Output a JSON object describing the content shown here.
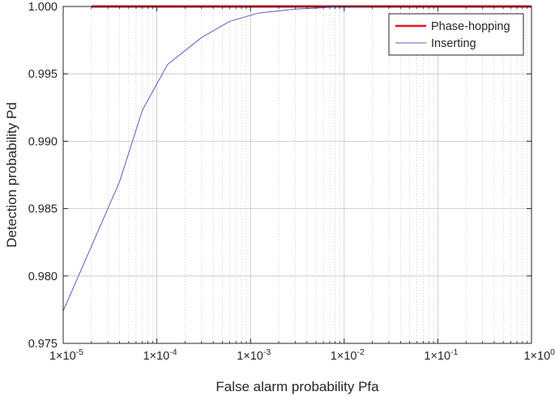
{
  "chart_data": {
    "type": "line",
    "xlabel": "False alarm probability Pfa",
    "ylabel": "Detection probability Pd",
    "xscale": "log",
    "xlim": [
      1e-05,
      1
    ],
    "ylim": [
      0.975,
      1.0
    ],
    "x_ticks": [
      1e-05,
      0.0001,
      0.001,
      0.01,
      0.1,
      1
    ],
    "x_tick_labels": [
      {
        "base": "1×10",
        "exp": "-5"
      },
      {
        "base": "1×10",
        "exp": "-4"
      },
      {
        "base": "1×10",
        "exp": "-3"
      },
      {
        "base": "1×10",
        "exp": "-2"
      },
      {
        "base": "1×10",
        "exp": "-1"
      },
      {
        "base": "1×10",
        "exp": "0"
      }
    ],
    "y_ticks": [
      0.975,
      0.98,
      0.985,
      0.99,
      0.995,
      1.0
    ],
    "y_tick_labels": [
      "0.975",
      "0.980",
      "0.985",
      "0.990",
      "0.995",
      "1.000"
    ],
    "grid": true,
    "minor_grid": true,
    "legend_position": "top-right",
    "series": [
      {
        "name": "Phase-hopping",
        "color": "#e8141c",
        "x": [
          2e-05,
          1
        ],
        "y": [
          1.0,
          1.0
        ]
      },
      {
        "name": "Inserting",
        "color": "#5b5bc8",
        "x": [
          1e-05,
          4e-05,
          7e-05,
          0.00013,
          0.0003,
          0.0006,
          0.0012,
          0.003,
          0.008,
          0.03,
          0.1,
          1
        ],
        "y": [
          0.9774,
          0.987,
          0.9923,
          0.9957,
          0.9977,
          0.9989,
          0.9995,
          0.9998,
          0.99995,
          1.0,
          1.0,
          1.0
        ]
      }
    ]
  }
}
